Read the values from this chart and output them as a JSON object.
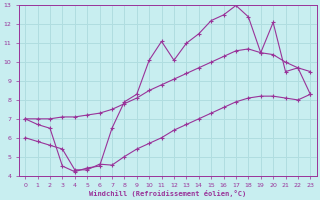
{
  "title": "",
  "xlabel": "Windchill (Refroidissement éolien,°C)",
  "ylabel": "",
  "xlim": [
    -0.5,
    23.5
  ],
  "ylim": [
    4,
    13
  ],
  "xticks": [
    0,
    1,
    2,
    3,
    4,
    5,
    6,
    7,
    8,
    9,
    10,
    11,
    12,
    13,
    14,
    15,
    16,
    17,
    18,
    19,
    20,
    21,
    22,
    23
  ],
  "yticks": [
    4,
    5,
    6,
    7,
    8,
    9,
    10,
    11,
    12,
    13
  ],
  "bg_color": "#c8eef0",
  "grid_color": "#b0dde0",
  "line_color": "#993399",
  "line1_x": [
    0,
    1,
    2,
    3,
    4,
    5,
    6,
    7,
    8,
    9,
    10,
    11,
    12,
    13,
    14,
    15,
    16,
    17,
    18,
    19,
    20,
    21,
    22,
    23
  ],
  "line1_y": [
    7.0,
    6.7,
    6.5,
    4.5,
    4.2,
    4.4,
    4.5,
    6.5,
    7.9,
    8.3,
    10.1,
    11.1,
    10.1,
    11.0,
    11.5,
    12.2,
    12.5,
    13.0,
    12.4,
    10.5,
    12.1,
    9.5,
    9.7,
    8.3
  ],
  "line2_x": [
    0,
    1,
    2,
    3,
    4,
    5,
    6,
    7,
    8,
    9,
    10,
    11,
    12,
    13,
    14,
    15,
    16,
    17,
    18,
    19,
    20,
    21,
    22,
    23
  ],
  "line2_y": [
    7.0,
    7.0,
    7.0,
    7.1,
    7.1,
    7.2,
    7.3,
    7.5,
    7.8,
    8.1,
    8.5,
    8.8,
    9.1,
    9.4,
    9.7,
    10.0,
    10.3,
    10.6,
    10.7,
    10.5,
    10.4,
    10.0,
    9.7,
    9.5
  ],
  "line3_x": [
    0,
    1,
    2,
    3,
    4,
    5,
    6,
    7,
    8,
    9,
    10,
    11,
    12,
    13,
    14,
    15,
    16,
    17,
    18,
    19,
    20,
    21,
    22,
    23
  ],
  "line3_y": [
    6.0,
    5.8,
    5.6,
    5.4,
    4.3,
    4.3,
    4.6,
    4.55,
    5.0,
    5.4,
    5.7,
    6.0,
    6.4,
    6.7,
    7.0,
    7.3,
    7.6,
    7.9,
    8.1,
    8.2,
    8.2,
    8.1,
    8.0,
    8.3
  ]
}
